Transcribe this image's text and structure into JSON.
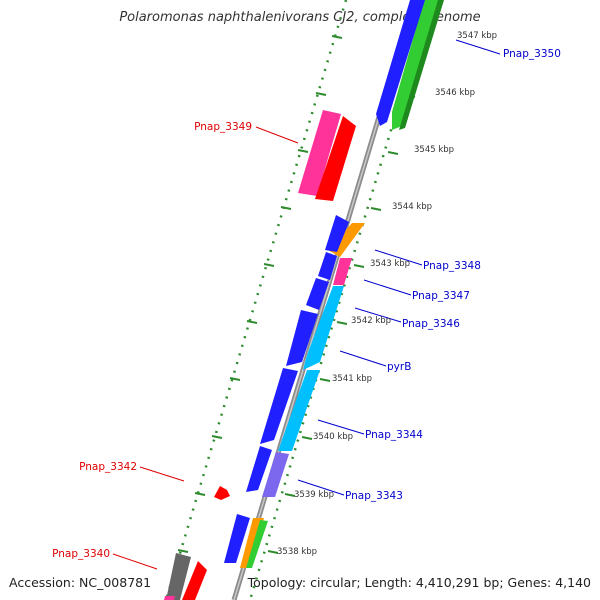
{
  "title": "Polaromonas naphthalenivorans CJ2, complete genome",
  "footer": {
    "accession": "Accession: NC_008781",
    "topology": "Topology: circular; Length: 4,410,291 bp; Genes: 4,140"
  },
  "colors": {
    "backbone": "#8c8c8c",
    "tick": "#2e8b2e",
    "label_forward": "#0000cc",
    "label_reverse": "#e00000",
    "tick_label": "#333333"
  },
  "scale": {
    "tick_labels": [
      "3547 kbp",
      "3546 kbp",
      "3545 kbp",
      "3544 kbp",
      "3543 kbp",
      "3542 kbp",
      "3541 kbp",
      "3540 kbp",
      "3539 kbp",
      "3538 kbp"
    ]
  },
  "genes": {
    "forward_labels": [
      "Pnap_3350",
      "Pnap_3348",
      "Pnap_3347",
      "Pnap_3346",
      "pyrB",
      "Pnap_3344",
      "Pnap_3343"
    ],
    "reverse_labels": [
      "Pnap_3349",
      "Pnap_3342",
      "Pnap_3340"
    ]
  }
}
